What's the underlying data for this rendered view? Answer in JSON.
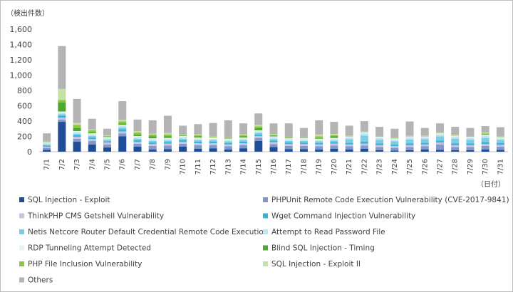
{
  "chart_data": {
    "type": "bar",
    "stacked": true,
    "ylabel": "（検出件数）",
    "xlabel": "（日付）",
    "ylim": [
      0,
      1600
    ],
    "yticks": [
      0,
      200,
      400,
      600,
      800,
      1000,
      1200,
      1400,
      1600
    ],
    "ytick_labels": [
      "0",
      "200",
      "400",
      "600",
      "800",
      "1,000",
      "1,200",
      "1,400",
      "1,600"
    ],
    "grid": false,
    "legend_position": "bottom",
    "categories": [
      "7/1",
      "7/2",
      "7/3",
      "7/4",
      "7/5",
      "7/6",
      "7/7",
      "7/8",
      "7/9",
      "7/10",
      "7/11",
      "7/12",
      "7/13",
      "7/14",
      "7/15",
      "7/16",
      "7/17",
      "7/18",
      "7/19",
      "7/20",
      "7/21",
      "7/22",
      "7/23",
      "7/24",
      "7/25",
      "7/26",
      "7/27",
      "7/28",
      "7/29",
      "7/30",
      "7/31"
    ],
    "series": [
      {
        "name": "SQL Injection - Exploit",
        "color": "#1f4e96",
        "values": [
          25,
          390,
          130,
          95,
          55,
          200,
          65,
          30,
          35,
          65,
          40,
          45,
          30,
          45,
          140,
          60,
          35,
          35,
          30,
          40,
          30,
          40,
          20,
          15,
          20,
          30,
          25,
          20,
          20,
          30,
          25
        ]
      },
      {
        "name": "PHPUnit Remote Code Execution Vulnerability (CVE-2017-9841)",
        "color": "#8497c9",
        "values": [
          25,
          30,
          40,
          45,
          40,
          40,
          40,
          45,
          45,
          40,
          45,
          40,
          40,
          40,
          40,
          40,
          40,
          40,
          40,
          40,
          40,
          40,
          40,
          35,
          40,
          40,
          70,
          40,
          40,
          45,
          40
        ]
      },
      {
        "name": "ThinkPHP CMS Getshell Vulnerability",
        "color": "#c9c3e3",
        "values": [
          15,
          25,
          25,
          25,
          25,
          25,
          25,
          25,
          25,
          25,
          25,
          25,
          25,
          25,
          25,
          25,
          25,
          25,
          25,
          25,
          25,
          25,
          25,
          25,
          25,
          25,
          25,
          25,
          25,
          25,
          25
        ]
      },
      {
        "name": "Wget Command Injection Vulnerability",
        "color": "#31b6d6",
        "values": [
          15,
          25,
          20,
          20,
          15,
          30,
          20,
          20,
          20,
          20,
          20,
          20,
          20,
          20,
          20,
          20,
          20,
          20,
          20,
          20,
          20,
          25,
          25,
          20,
          25,
          20,
          25,
          25,
          25,
          25,
          25
        ]
      },
      {
        "name": "Netis Netcore Router Default Credential Remote Code Execution",
        "color": "#7fcbe3",
        "values": [
          15,
          20,
          20,
          20,
          20,
          20,
          20,
          20,
          20,
          20,
          20,
          20,
          20,
          20,
          20,
          20,
          20,
          20,
          20,
          20,
          50,
          80,
          50,
          40,
          50,
          50,
          55,
          60,
          50,
          55,
          40
        ]
      },
      {
        "name": "Attempt to Read Password File",
        "color": "#bfe5f2",
        "values": [
          15,
          20,
          20,
          20,
          20,
          20,
          20,
          20,
          20,
          20,
          20,
          20,
          20,
          20,
          20,
          20,
          20,
          20,
          20,
          20,
          20,
          30,
          20,
          20,
          25,
          20,
          25,
          25,
          20,
          25,
          20
        ]
      },
      {
        "name": "RDP Tunneling Attempt Detected",
        "color": "#e3f3f6",
        "values": [
          10,
          15,
          15,
          15,
          15,
          15,
          15,
          15,
          15,
          15,
          15,
          15,
          15,
          15,
          15,
          15,
          15,
          15,
          15,
          15,
          15,
          15,
          15,
          15,
          15,
          15,
          15,
          15,
          15,
          15,
          15
        ]
      },
      {
        "name": "Blind SQL Injection - Timing",
        "color": "#4ea72e",
        "values": [
          0,
          120,
          40,
          15,
          0,
          20,
          20,
          25,
          20,
          5,
          15,
          0,
          5,
          15,
          30,
          10,
          5,
          0,
          10,
          20,
          0,
          0,
          0,
          0,
          0,
          0,
          0,
          0,
          0,
          10,
          0
        ]
      },
      {
        "name": "PHP File Inclusion Vulnerability",
        "color": "#8cc63f",
        "values": [
          5,
          30,
          40,
          25,
          15,
          25,
          25,
          25,
          25,
          10,
          15,
          10,
          10,
          15,
          20,
          10,
          10,
          10,
          20,
          15,
          5,
          5,
          5,
          5,
          5,
          5,
          5,
          5,
          5,
          10,
          5
        ]
      },
      {
        "name": "SQL Injection - Exploit II",
        "color": "#c5e2a5",
        "values": [
          10,
          145,
          25,
          10,
          10,
          20,
          20,
          10,
          20,
          5,
          10,
          5,
          5,
          10,
          20,
          10,
          5,
          5,
          25,
          15,
          5,
          5,
          5,
          5,
          5,
          5,
          5,
          5,
          5,
          10,
          5
        ]
      },
      {
        "name": "Others",
        "color": "#b4b4b4",
        "values": [
          105,
          560,
          315,
          140,
          85,
          245,
          150,
          175,
          225,
          115,
          135,
          175,
          220,
          145,
          150,
          140,
          175,
          120,
          185,
          160,
          130,
          135,
          120,
          120,
          185,
          100,
          120,
          105,
          105,
          85,
          120
        ]
      }
    ]
  }
}
